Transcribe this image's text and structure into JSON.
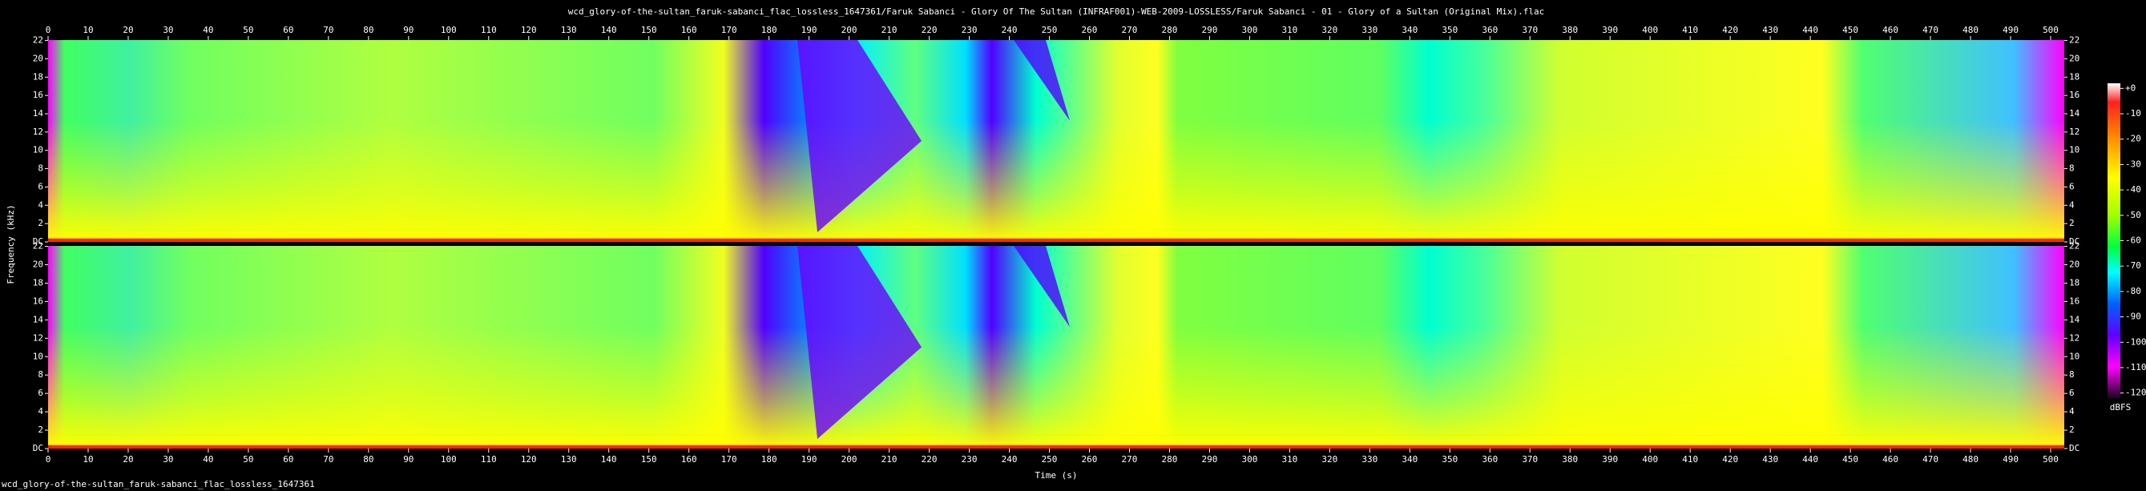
{
  "chart_data": {
    "type": "spectrogram",
    "title": "wcd_glory-of-the-sultan_faruk-sabanci_flac_lossless_1647361/Faruk Sabanci - Glory Of The Sultan (INFRAF001)-WEB-2009-LOSSLESS/Faruk Sabanci - 01 - Glory of a Sultan (Original Mix).flac",
    "note": "wcd_glory-of-the-sultan_faruk-sabanci_flac_lossless_1647361",
    "x_label": "Time (s)",
    "y_label": "Frequency (kHz)",
    "xlim": [
      0,
      503.4
    ],
    "xticks": [
      0,
      10,
      20,
      30,
      40,
      50,
      60,
      70,
      80,
      90,
      100,
      110,
      120,
      130,
      140,
      150,
      160,
      170,
      180,
      190,
      200,
      210,
      220,
      230,
      240,
      250,
      260,
      270,
      280,
      290,
      300,
      310,
      320,
      330,
      340,
      350,
      360,
      370,
      380,
      390,
      400,
      410,
      420,
      430,
      440,
      450,
      460,
      470,
      480,
      490,
      500
    ],
    "ylim": [
      0,
      22.05
    ],
    "yticks": [
      {
        "value": 0,
        "label": "DC"
      },
      2,
      4,
      6,
      8,
      10,
      12,
      14,
      16,
      18,
      20,
      22
    ],
    "colorbar": {
      "label": "dBFS",
      "lim": [
        -122,
        2
      ],
      "ticks": [
        {
          "value": 0,
          "label": "+0"
        },
        -10,
        -20,
        -30,
        -40,
        -50,
        -60,
        -70,
        -80,
        -90,
        -100,
        -110,
        -120
      ]
    }
  }
}
